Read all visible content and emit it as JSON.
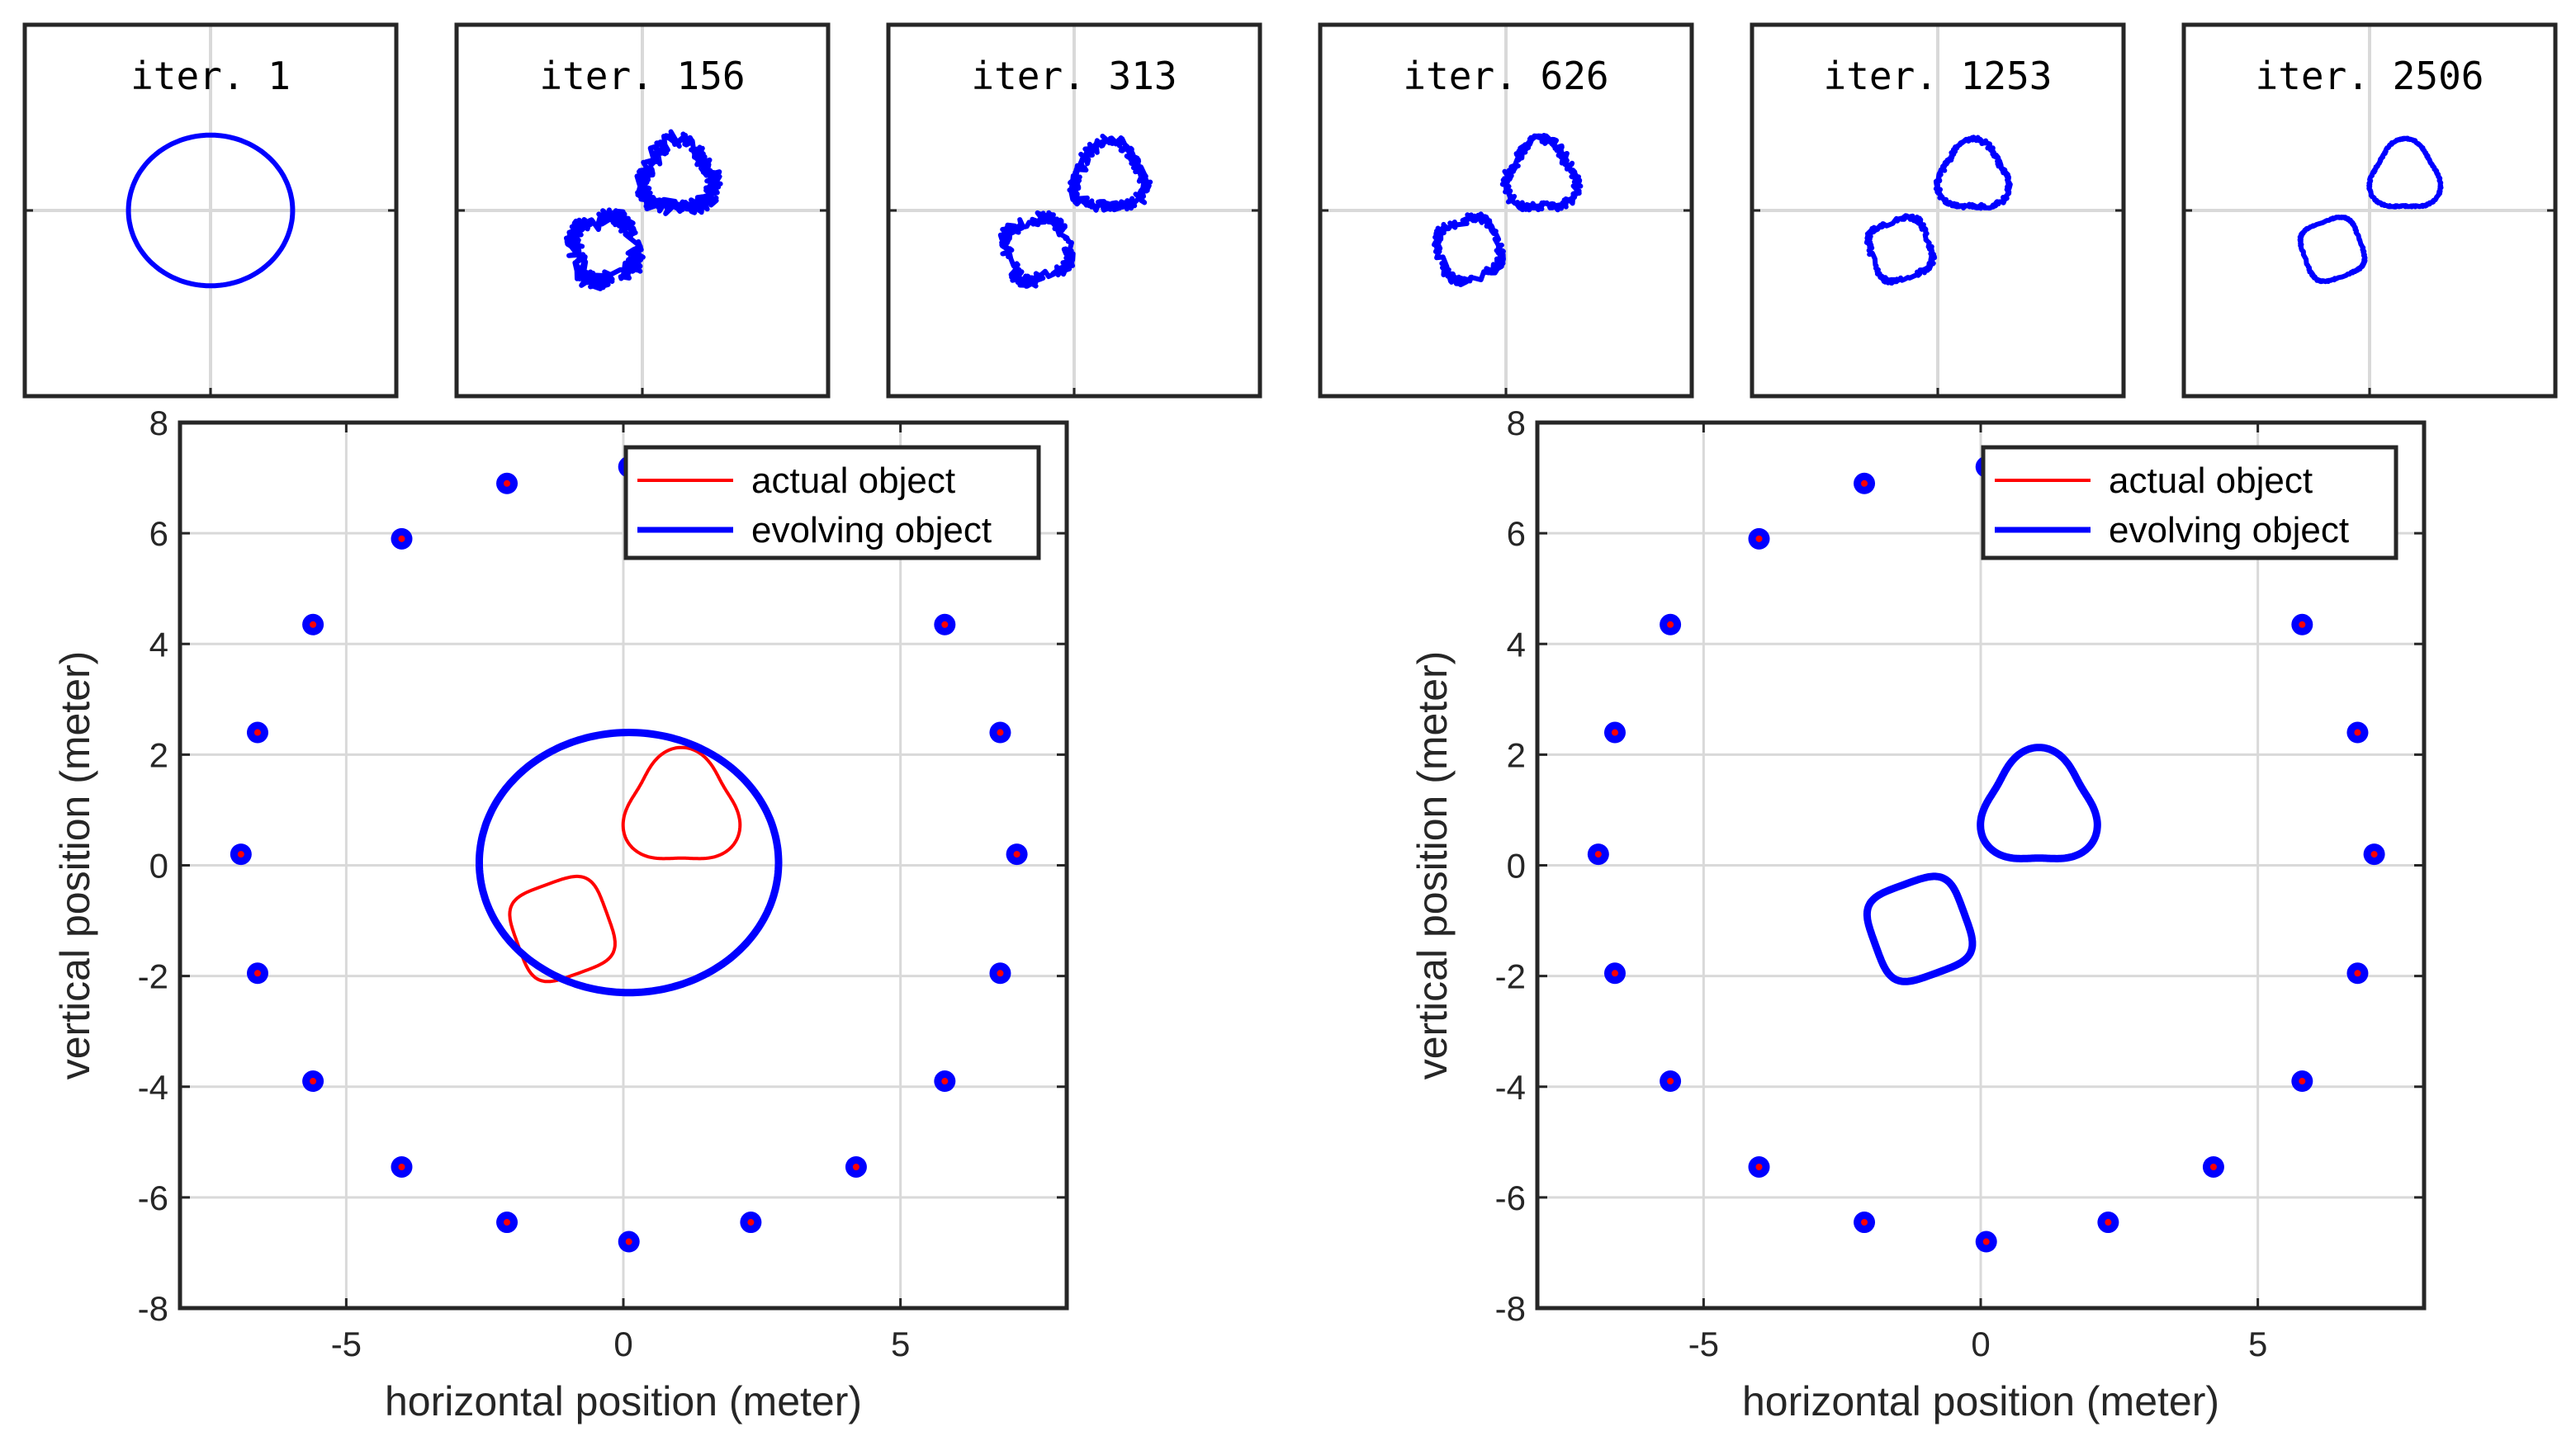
{
  "colors": {
    "actual": "#ff0000",
    "evolving": "#0000ff",
    "grid": "#d9d9d9",
    "axes": "#262626"
  },
  "iterations": [
    {
      "title": "iter. 1"
    },
    {
      "title": "iter. 156"
    },
    {
      "title": "iter. 313"
    },
    {
      "title": "iter. 626"
    },
    {
      "title": "iter. 1253"
    },
    {
      "title": "iter. 2506"
    }
  ],
  "main_plots": [
    {
      "xlabel": "horizontal position (meter)",
      "ylabel": "vertical position (meter)"
    },
    {
      "xlabel": "horizontal position (meter)",
      "ylabel": "vertical position (meter)"
    }
  ],
  "legend": {
    "actual": "actual object",
    "evolving": "evolving object"
  },
  "chart_data": [
    {
      "type": "scatter",
      "title": "",
      "xlabel": "horizontal position (meter)",
      "ylabel": "vertical position (meter)",
      "xlim": [
        -8,
        8
      ],
      "ylim": [
        -8,
        8
      ],
      "x_ticks": [
        -5,
        0,
        5
      ],
      "x_tick_labels": [
        "-5",
        "0",
        "5"
      ],
      "y_ticks": [
        8,
        6,
        4,
        2,
        0,
        -2,
        -4,
        -6,
        -8
      ],
      "y_tick_labels": [
        "8",
        "6",
        "4",
        "2",
        "0",
        "-2",
        "-4",
        "-6",
        "-8"
      ],
      "grid": true,
      "legend_position": "top-right",
      "antennas": [
        [
          0.1,
          7.2
        ],
        [
          -2.1,
          6.9
        ],
        [
          -4.0,
          5.9
        ],
        [
          -5.6,
          4.35
        ],
        [
          -6.6,
          2.4
        ],
        [
          -6.9,
          0.2
        ],
        [
          -6.6,
          -1.95
        ],
        [
          -5.6,
          -3.9
        ],
        [
          -4.0,
          -5.45
        ],
        [
          -2.1,
          -6.45
        ],
        [
          0.1,
          -6.8
        ],
        [
          2.3,
          -6.45
        ],
        [
          4.2,
          -5.45
        ],
        [
          5.8,
          -3.9
        ],
        [
          6.8,
          -1.95
        ],
        [
          7.1,
          0.2
        ],
        [
          6.8,
          2.4
        ],
        [
          5.8,
          4.35
        ]
      ],
      "series": [
        {
          "name": "actual object",
          "shape": "rounded-triangle",
          "center": [
            1.05,
            1.0
          ],
          "radius": 1.0
        },
        {
          "name": "actual object",
          "shape": "rounded-square",
          "center": [
            -1.1,
            -1.15
          ],
          "half_size": 0.85
        },
        {
          "name": "evolving object",
          "shape": "ellipse",
          "center": [
            0.1,
            0.05
          ],
          "radii": [
            2.7,
            2.35
          ]
        }
      ]
    },
    {
      "type": "scatter",
      "title": "",
      "xlabel": "horizontal position (meter)",
      "ylabel": "vertical position (meter)",
      "xlim": [
        -8,
        8
      ],
      "ylim": [
        -8,
        8
      ],
      "x_ticks": [
        -5,
        0,
        5
      ],
      "x_tick_labels": [
        "-5",
        "0",
        "5"
      ],
      "y_ticks": [
        8,
        6,
        4,
        2,
        0,
        -2,
        -4,
        -6,
        -8
      ],
      "y_tick_labels": [
        "8",
        "6",
        "4",
        "2",
        "0",
        "-2",
        "-4",
        "-6",
        "-8"
      ],
      "grid": true,
      "legend_position": "top-right",
      "antennas": [
        [
          0.1,
          7.2
        ],
        [
          -2.1,
          6.9
        ],
        [
          -4.0,
          5.9
        ],
        [
          -5.6,
          4.35
        ],
        [
          -6.6,
          2.4
        ],
        [
          -6.9,
          0.2
        ],
        [
          -6.6,
          -1.95
        ],
        [
          -5.6,
          -3.9
        ],
        [
          -4.0,
          -5.45
        ],
        [
          -2.1,
          -6.45
        ],
        [
          0.1,
          -6.8
        ],
        [
          2.3,
          -6.45
        ],
        [
          4.2,
          -5.45
        ],
        [
          5.8,
          -3.9
        ],
        [
          6.8,
          -1.95
        ],
        [
          7.1,
          0.2
        ],
        [
          6.8,
          2.4
        ],
        [
          5.8,
          4.35
        ]
      ],
      "series": [
        {
          "name": "evolving object",
          "shape": "rounded-triangle",
          "center": [
            1.05,
            1.0
          ],
          "radius": 1.0
        },
        {
          "name": "evolving object",
          "shape": "rounded-square",
          "center": [
            -1.1,
            -1.15
          ],
          "half_size": 0.85
        }
      ]
    }
  ]
}
